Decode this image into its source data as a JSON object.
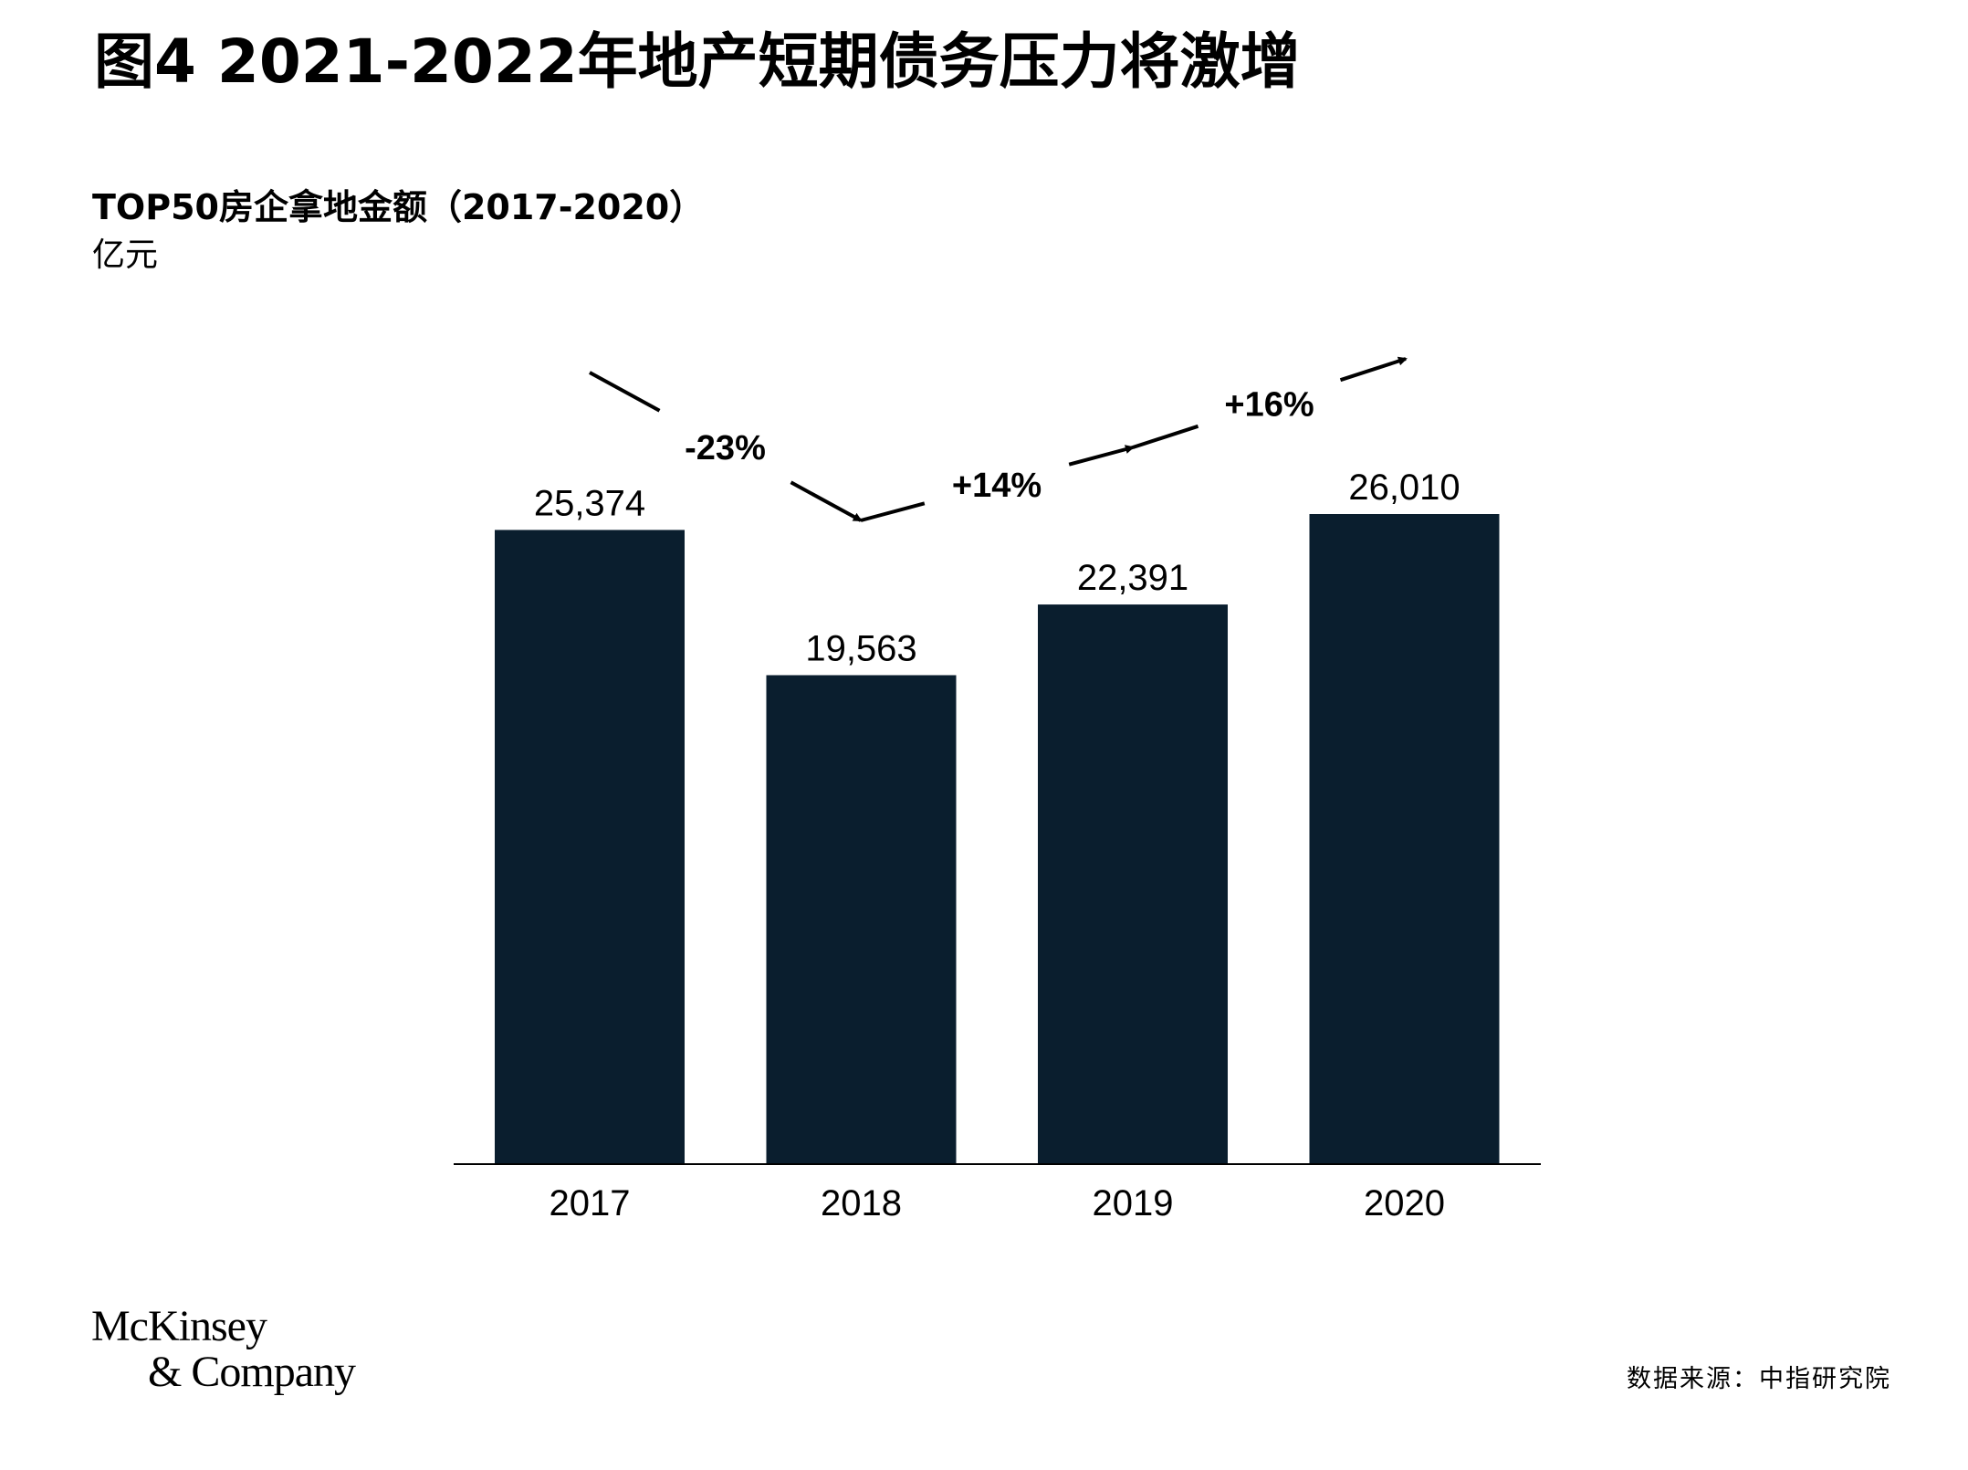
{
  "header": {
    "title": "图4 2021-2022年地产短期债务压力将激增"
  },
  "chart_data": {
    "type": "bar",
    "title": "TOP50房企拿地金额（2017-2020）",
    "unit": "亿元",
    "categories": [
      "2017",
      "2018",
      "2019",
      "2020"
    ],
    "values": [
      25374,
      19563,
      22391,
      26010
    ],
    "value_labels": [
      "25,374",
      "19,563",
      "22,391",
      "26,010"
    ],
    "bar_color": "#0a1e2e",
    "ylim": [
      0,
      26010
    ],
    "grid": false,
    "legend": "none",
    "change_annotations": [
      {
        "from": "2017",
        "to": "2018",
        "label": "-23%"
      },
      {
        "from": "2018",
        "to": "2019",
        "label": "+14%"
      },
      {
        "from": "2019",
        "to": "2020",
        "label": "+16%"
      }
    ]
  },
  "footer": {
    "logo_line1": "McKinsey",
    "logo_line2": "& Company",
    "source": "数据来源：中指研究院"
  }
}
